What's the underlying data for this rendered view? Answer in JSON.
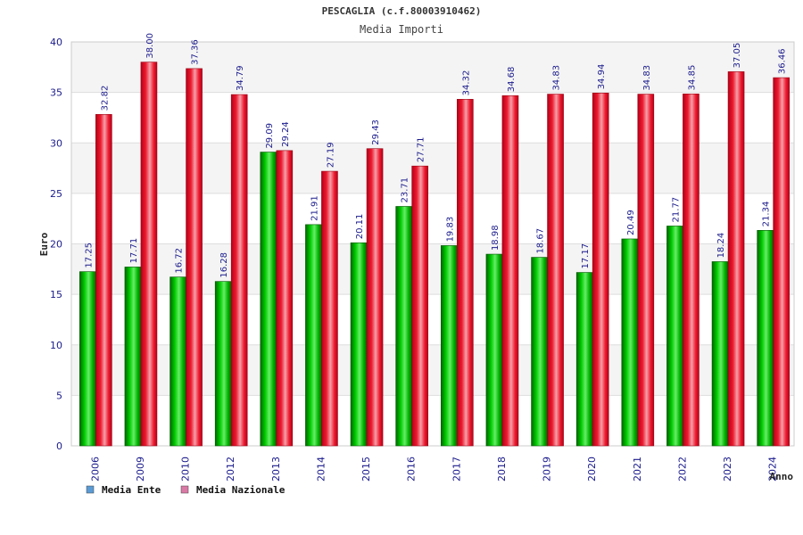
{
  "chart_data": {
    "type": "bar",
    "title": "PESCAGLIA (c.f.80003910462)",
    "subtitle": "Media Importi",
    "xlabel": "Anno",
    "ylabel": "Euro",
    "ylim": [
      0,
      40
    ],
    "yticks": [
      0,
      5,
      10,
      15,
      20,
      25,
      30,
      35,
      40
    ],
    "categories": [
      "2006",
      "2009",
      "2010",
      "2012",
      "2013",
      "2014",
      "2015",
      "2016",
      "2017",
      "2018",
      "2019",
      "2020",
      "2021",
      "2022",
      "2023",
      "2024"
    ],
    "series": [
      {
        "name": "Media Ente",
        "color": "#00aa00",
        "values": [
          17.25,
          17.71,
          16.72,
          16.28,
          29.09,
          21.91,
          20.11,
          23.71,
          19.83,
          18.98,
          18.67,
          17.17,
          20.49,
          21.77,
          18.24,
          21.34
        ],
        "labels": [
          "17.25",
          "17.71",
          "16.72",
          "16.28",
          "29.09",
          "21.91",
          "20.11",
          "23.71",
          "19.83",
          "18.98",
          "18.67",
          "17.17",
          "20.49",
          "21.77",
          "18.24",
          "21.34"
        ]
      },
      {
        "name": "Media Nazionale",
        "color": "#e8142a",
        "values": [
          32.82,
          38.0,
          37.36,
          34.79,
          29.24,
          27.19,
          29.43,
          27.71,
          34.32,
          34.68,
          34.83,
          34.94,
          34.83,
          34.85,
          37.05,
          36.46
        ],
        "labels": [
          "32.82",
          "38.00",
          "37.36",
          "34.79",
          "29.24",
          "27.19",
          "29.43",
          "27.71",
          "34.32",
          "34.68",
          "34.83",
          "34.94",
          "34.83",
          "34.85",
          "37.05",
          "36.46"
        ]
      }
    ],
    "legend": {
      "placement": "bottom-left",
      "items": [
        {
          "label": "Media Ente",
          "color": "#5b9bd5"
        },
        {
          "label": "Media Nazionale",
          "color": "#d97aa5"
        }
      ]
    },
    "grid": true
  }
}
